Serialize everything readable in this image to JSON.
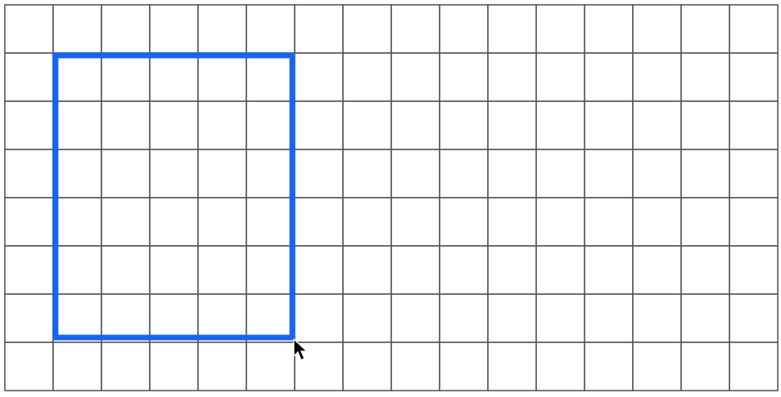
{
  "grid": {
    "columns": 16,
    "rows": 8,
    "line_color": "#555555",
    "background_color": "#ffffff"
  },
  "selection": {
    "start_column": 1,
    "start_row": 1,
    "end_column": 5,
    "end_row": 6,
    "color": "#1565f0"
  },
  "cursor": {
    "icon": "arrow-cursor-icon",
    "color": "#000000"
  }
}
